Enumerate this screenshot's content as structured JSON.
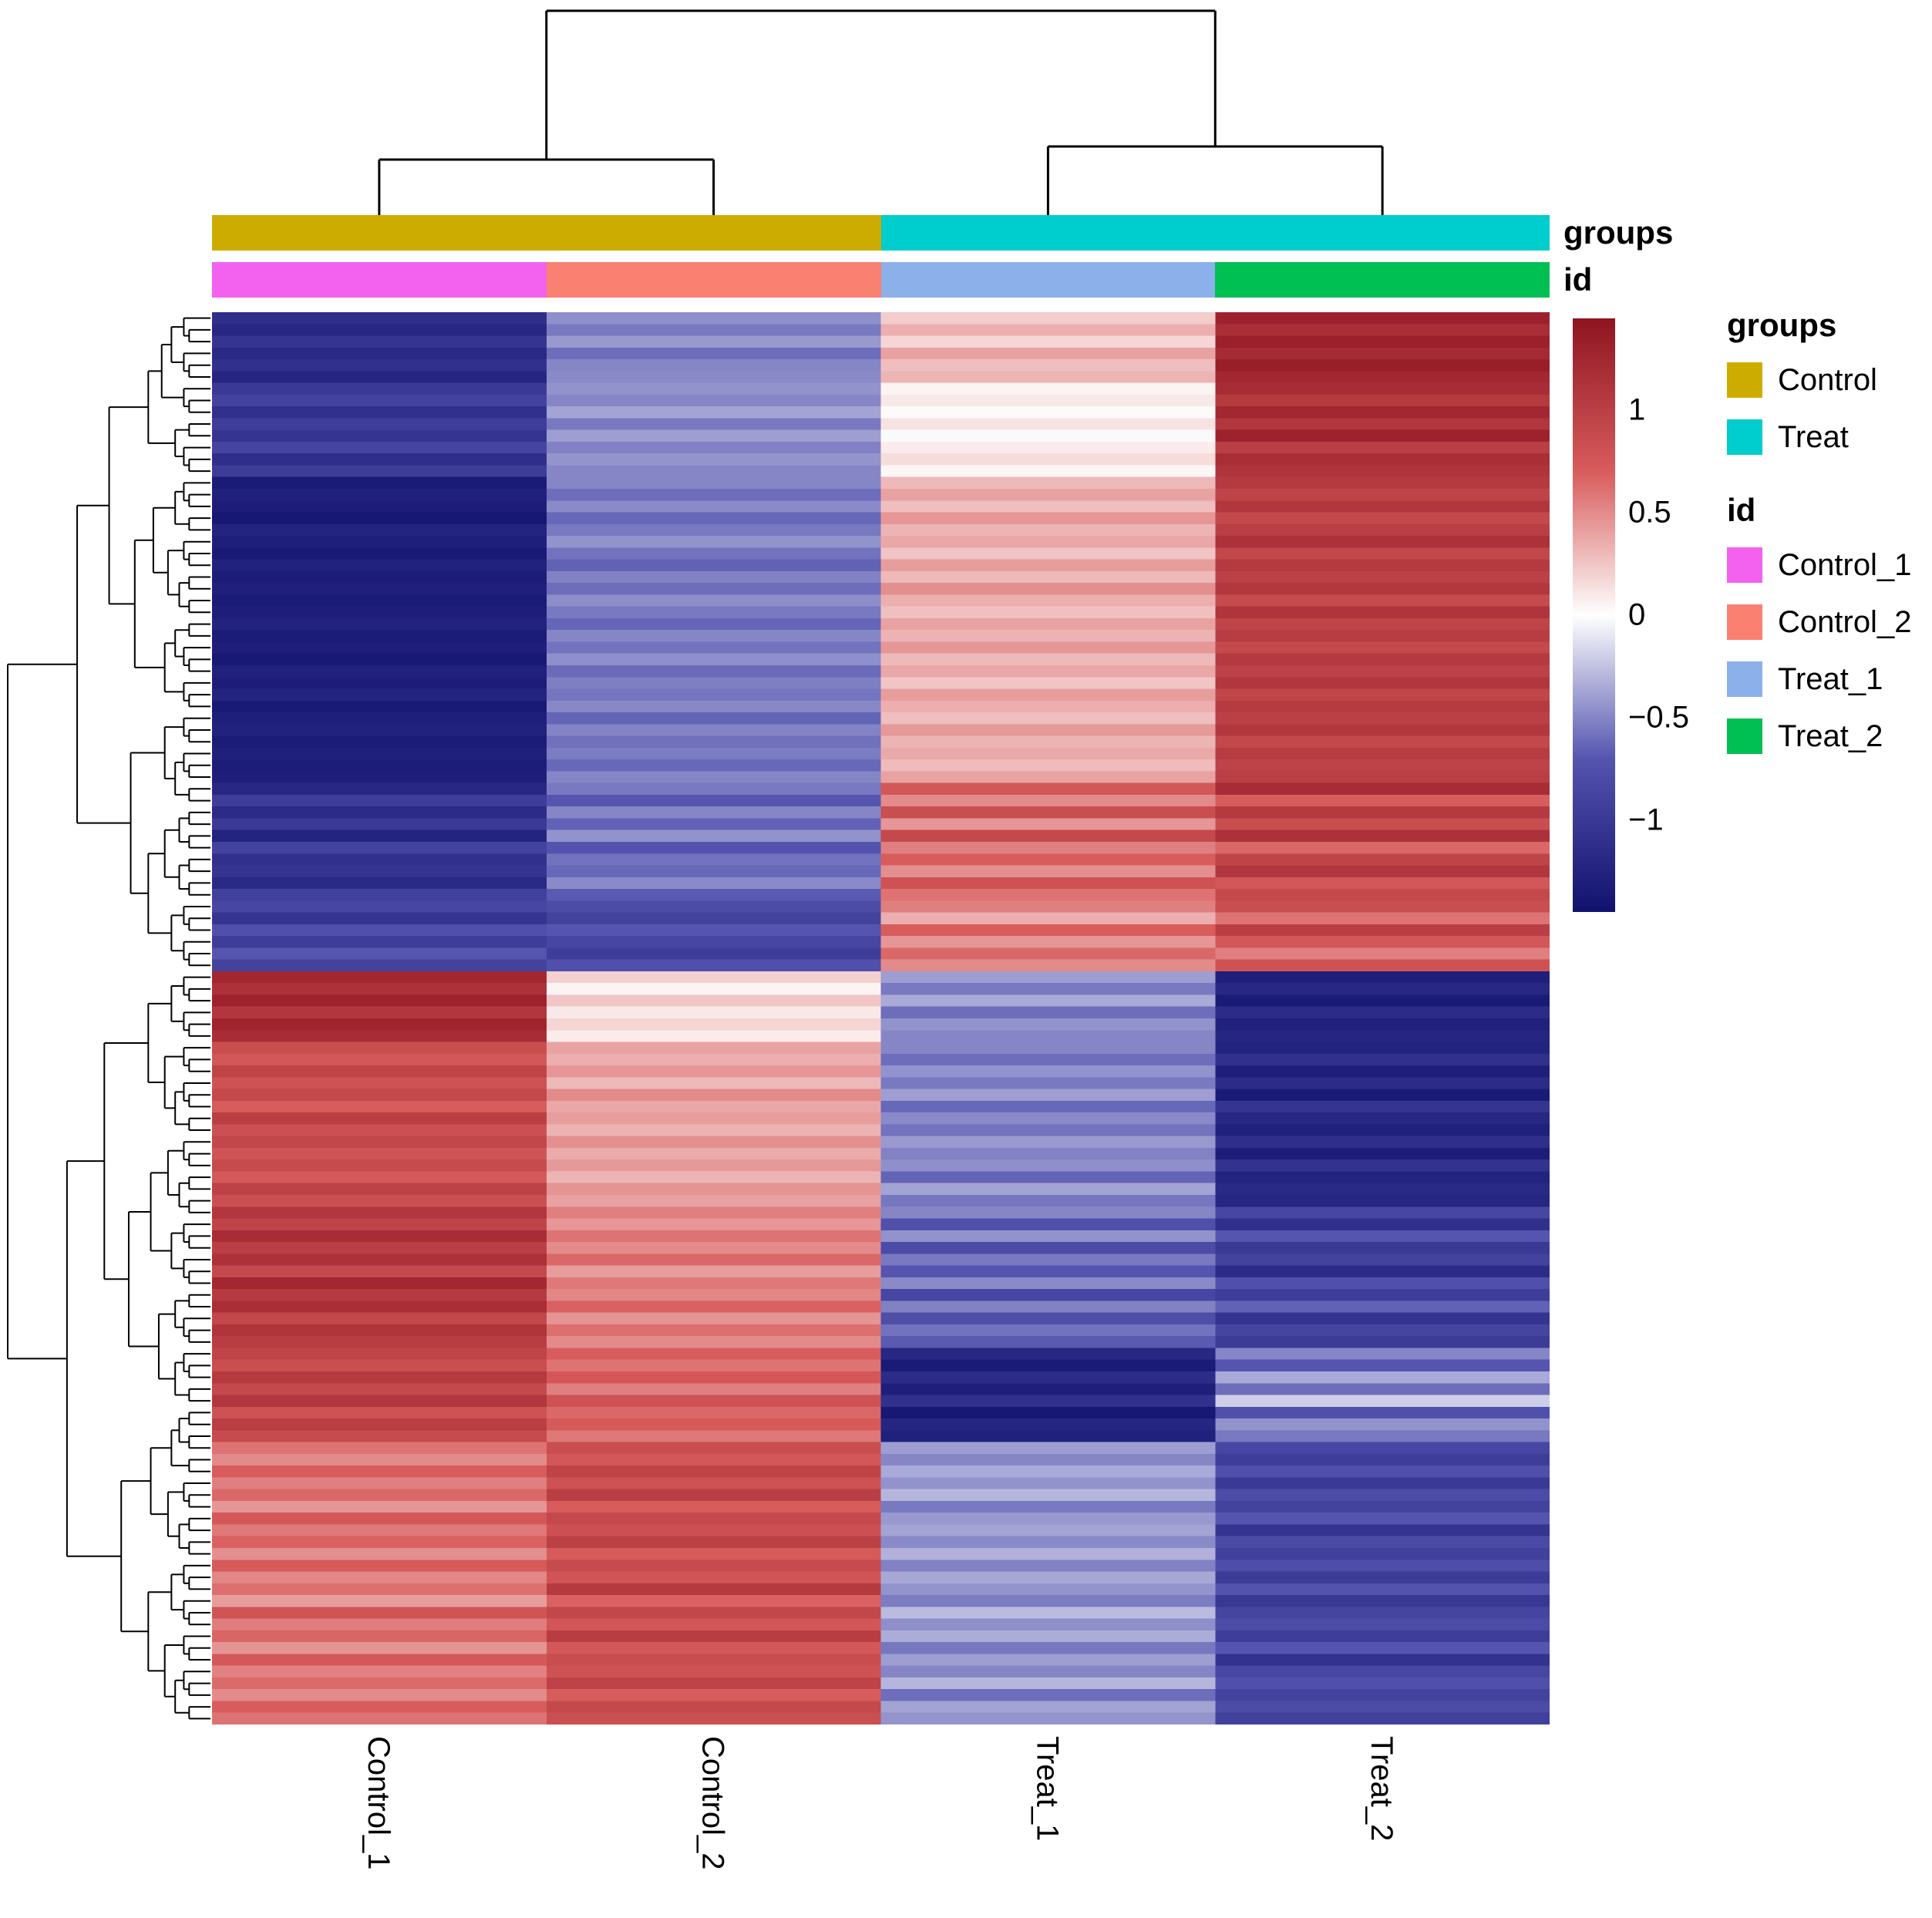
{
  "annotations": {
    "groups_label": "groups",
    "id_label": "id",
    "groups_track": [
      {
        "name": "Control",
        "color": "#cdac00",
        "span": 2
      },
      {
        "name": "Treat",
        "color": "#00cdcd",
        "span": 2
      }
    ],
    "id_track": [
      {
        "name": "Control_1",
        "color": "#f361ef",
        "span": 1
      },
      {
        "name": "Control_2",
        "color": "#fa8072",
        "span": 1
      },
      {
        "name": "Treat_1",
        "color": "#8cb0ea",
        "span": 1
      },
      {
        "name": "Treat_2",
        "color": "#00c053",
        "span": 1
      }
    ]
  },
  "legend": {
    "groups": {
      "title": "groups",
      "items": [
        {
          "label": "Control",
          "color": "#cdac00"
        },
        {
          "label": "Treat",
          "color": "#00cdcd"
        }
      ]
    },
    "id": {
      "title": "id",
      "items": [
        {
          "label": "Control_1",
          "color": "#f361ef"
        },
        {
          "label": "Control_2",
          "color": "#fa8072"
        },
        {
          "label": "Treat_1",
          "color": "#8cb0ea"
        },
        {
          "label": "Treat_2",
          "color": "#00c053"
        }
      ]
    },
    "colorbar_ticks": [
      {
        "label": "1",
        "value": 1
      },
      {
        "label": "0.5",
        "value": 0.5
      },
      {
        "label": "0",
        "value": 0
      },
      {
        "label": "−0.5",
        "value": -0.5
      },
      {
        "label": "−1",
        "value": -1
      }
    ]
  },
  "chart_data": {
    "type": "heatmap",
    "columns": [
      "Control_1",
      "Control_2",
      "Treat_1",
      "Treat_2"
    ],
    "column_groups": [
      "Control",
      "Control",
      "Treat",
      "Treat"
    ],
    "column_dendrogram": {
      "merges": [
        [
          "Control_1",
          "Control_2"
        ],
        [
          "Treat_1",
          "Treat_2"
        ]
      ]
    },
    "row_cluster_sizes": [
      56,
      64
    ],
    "n_rows": 120,
    "color_scale": {
      "domain": [
        -1.45,
        -0.7,
        0,
        0.7,
        1.45
      ],
      "colors": [
        "#11116e",
        "#5555b0",
        "#ffffff",
        "#d85c5c",
        "#8e1421"
      ]
    },
    "value_range": [
      -1.45,
      1.45
    ],
    "rows": [
      [
        -1.12,
        -0.46,
        0.22,
        1.3
      ],
      [
        -1.2,
        -0.55,
        0.35,
        1.18
      ],
      [
        -1.05,
        -0.42,
        0.18,
        1.32
      ],
      [
        -1.18,
        -0.6,
        0.4,
        1.22
      ],
      [
        -1.1,
        -0.5,
        0.28,
        1.35
      ],
      [
        -1.22,
        -0.48,
        0.32,
        1.25
      ],
      [
        -1.0,
        -0.45,
        0.05,
        1.2
      ],
      [
        -0.9,
        -0.5,
        0.1,
        1.05
      ],
      [
        -1.1,
        -0.38,
        0.02,
        1.25
      ],
      [
        -0.95,
        -0.55,
        0.12,
        1.1
      ],
      [
        -1.05,
        -0.4,
        -0.02,
        1.3
      ],
      [
        -0.88,
        -0.52,
        0.08,
        1.0
      ],
      [
        -1.12,
        -0.44,
        0.15,
        1.18
      ],
      [
        -0.98,
        -0.5,
        0.04,
        1.12
      ],
      [
        -1.35,
        -0.5,
        0.3,
        1.05
      ],
      [
        -1.28,
        -0.6,
        0.4,
        0.95
      ],
      [
        -1.32,
        -0.48,
        0.28,
        1.1
      ],
      [
        -1.38,
        -0.62,
        0.45,
        0.9
      ],
      [
        -1.25,
        -0.55,
        0.32,
        1.0
      ],
      [
        -1.3,
        -0.45,
        0.38,
        1.15
      ],
      [
        -1.36,
        -0.58,
        0.25,
        0.92
      ],
      [
        -1.27,
        -0.65,
        0.42,
        1.05
      ],
      [
        -1.33,
        -0.52,
        0.3,
        0.98
      ],
      [
        -1.29,
        -0.6,
        0.48,
        1.08
      ],
      [
        -1.35,
        -0.47,
        0.35,
        0.88
      ],
      [
        -1.31,
        -0.55,
        0.27,
        1.12
      ],
      [
        -1.26,
        -0.63,
        0.4,
        0.95
      ],
      [
        -1.34,
        -0.5,
        0.33,
        1.02
      ],
      [
        -1.3,
        -0.58,
        0.45,
        0.9
      ],
      [
        -1.37,
        -0.46,
        0.3,
        1.06
      ],
      [
        -1.28,
        -0.61,
        0.38,
        0.97
      ],
      [
        -1.32,
        -0.53,
        0.25,
        1.1
      ],
      [
        -1.25,
        -0.57,
        0.42,
        0.93
      ],
      [
        -1.36,
        -0.49,
        0.35,
        1.04
      ],
      [
        -1.3,
        -0.64,
        0.28,
        0.99
      ],
      [
        -1.27,
        -0.51,
        0.44,
        1.08
      ],
      [
        -1.34,
        -0.59,
        0.32,
        0.91
      ],
      [
        -1.29,
        -0.54,
        0.37,
        1.03
      ],
      [
        -1.33,
        -0.62,
        0.29,
        0.96
      ],
      [
        -1.3,
        -0.5,
        0.4,
        1.0
      ],
      [
        -1.2,
        -0.55,
        0.75,
        1.2
      ],
      [
        -0.95,
        -0.7,
        0.5,
        0.7
      ],
      [
        -1.15,
        -0.5,
        0.85,
        1.05
      ],
      [
        -1.0,
        -0.65,
        0.45,
        0.85
      ],
      [
        -1.25,
        -0.45,
        0.9,
        1.15
      ],
      [
        -0.9,
        -0.72,
        0.55,
        0.65
      ],
      [
        -1.1,
        -0.58,
        0.7,
        0.95
      ],
      [
        -1.05,
        -0.62,
        0.48,
        1.1
      ],
      [
        -1.18,
        -0.48,
        0.8,
        0.75
      ],
      [
        -0.92,
        -0.68,
        0.6,
        0.9
      ],
      [
        -0.85,
        -0.8,
        0.55,
        0.85
      ],
      [
        -1.05,
        -0.9,
        0.35,
        0.6
      ],
      [
        -0.75,
        -0.7,
        0.7,
        1.0
      ],
      [
        -0.95,
        -0.85,
        0.45,
        0.75
      ],
      [
        -0.7,
        -0.95,
        0.65,
        0.55
      ],
      [
        -0.9,
        -0.75,
        0.5,
        0.8
      ],
      [
        1.25,
        0.2,
        -0.4,
        -1.3
      ],
      [
        1.15,
        0.05,
        -0.55,
        -1.2
      ],
      [
        1.3,
        0.25,
        -0.35,
        -1.35
      ],
      [
        1.1,
        0.1,
        -0.6,
        -1.15
      ],
      [
        1.28,
        0.18,
        -0.45,
        -1.28
      ],
      [
        1.2,
        0.08,
        -0.5,
        -1.22
      ],
      [
        0.85,
        0.4,
        -0.5,
        -1.25
      ],
      [
        0.75,
        0.35,
        -0.6,
        -1.1
      ],
      [
        0.95,
        0.45,
        -0.45,
        -1.3
      ],
      [
        0.8,
        0.3,
        -0.55,
        -1.15
      ],
      [
        0.9,
        0.5,
        -0.4,
        -1.35
      ],
      [
        0.7,
        0.38,
        -0.62,
        -1.05
      ],
      [
        1.0,
        0.42,
        -0.48,
        -1.2
      ],
      [
        0.82,
        0.33,
        -0.58,
        -1.28
      ],
      [
        0.92,
        0.48,
        -0.42,
        -1.12
      ],
      [
        0.78,
        0.36,
        -0.52,
        -1.32
      ],
      [
        0.88,
        0.44,
        -0.46,
        -1.08
      ],
      [
        0.73,
        0.32,
        -0.64,
        -1.25
      ],
      [
        0.97,
        0.46,
        -0.38,
        -1.18
      ],
      [
        0.84,
        0.4,
        -0.56,
        -1.22
      ],
      [
        1.1,
        0.55,
        -0.5,
        -0.85
      ],
      [
        0.95,
        0.45,
        -0.75,
        -1.1
      ],
      [
        1.2,
        0.6,
        -0.45,
        -0.7
      ],
      [
        1.0,
        0.5,
        -0.8,
        -1.0
      ],
      [
        1.15,
        0.65,
        -0.55,
        -0.9
      ],
      [
        0.9,
        0.42,
        -0.7,
        -1.15
      ],
      [
        1.25,
        0.58,
        -0.48,
        -0.75
      ],
      [
        1.05,
        0.52,
        -0.85,
        -0.95
      ],
      [
        1.18,
        0.68,
        -0.52,
        -0.65
      ],
      [
        0.92,
        0.46,
        -0.78,
        -1.05
      ],
      [
        1.12,
        0.62,
        -0.58,
        -0.88
      ],
      [
        1.02,
        0.5,
        -0.68,
        -0.98
      ],
      [
        0.95,
        0.7,
        -1.2,
        -0.5
      ],
      [
        0.85,
        0.6,
        -1.35,
        -0.7
      ],
      [
        1.05,
        0.75,
        -1.15,
        -0.35
      ],
      [
        0.9,
        0.55,
        -1.3,
        -0.6
      ],
      [
        1.1,
        0.8,
        -1.1,
        -0.2
      ],
      [
        0.8,
        0.65,
        -1.38,
        -0.75
      ],
      [
        1.0,
        0.72,
        -1.22,
        -0.45
      ],
      [
        0.88,
        0.58,
        -1.28,
        -0.55
      ],
      [
        0.6,
        0.85,
        -0.4,
        -0.85
      ],
      [
        0.5,
        0.75,
        -0.5,
        -0.95
      ],
      [
        0.7,
        0.95,
        -0.35,
        -0.75
      ],
      [
        0.55,
        0.8,
        -0.45,
        -1.0
      ],
      [
        0.65,
        1.0,
        -0.3,
        -0.8
      ],
      [
        0.45,
        0.7,
        -0.55,
        -0.9
      ],
      [
        0.75,
        0.9,
        -0.42,
        -0.7
      ],
      [
        0.58,
        0.82,
        -0.38,
        -1.05
      ],
      [
        0.68,
        0.98,
        -0.48,
        -0.82
      ],
      [
        0.48,
        0.72,
        -0.32,
        -0.92
      ],
      [
        0.72,
        0.88,
        -0.52,
        -0.78
      ],
      [
        0.52,
        0.78,
        -0.36,
        -0.98
      ],
      [
        0.62,
        1.05,
        -0.44,
        -0.72
      ],
      [
        0.42,
        0.68,
        -0.54,
        -1.02
      ],
      [
        0.78,
        0.92,
        -0.28,
        -0.88
      ],
      [
        0.56,
        0.76,
        -0.46,
        -0.8
      ],
      [
        0.66,
        1.02,
        -0.34,
        -0.95
      ],
      [
        0.46,
        0.74,
        -0.56,
        -0.7
      ],
      [
        0.74,
        0.86,
        -0.4,
        -1.08
      ],
      [
        0.54,
        0.8,
        -0.5,
        -0.85
      ],
      [
        0.64,
        0.96,
        -0.3,
        -0.75
      ],
      [
        0.5,
        0.7,
        -0.6,
        -0.9
      ],
      [
        0.7,
        0.9,
        -0.38,
        -0.8
      ],
      [
        0.6,
        0.84,
        -0.44,
        -0.92
      ]
    ]
  }
}
